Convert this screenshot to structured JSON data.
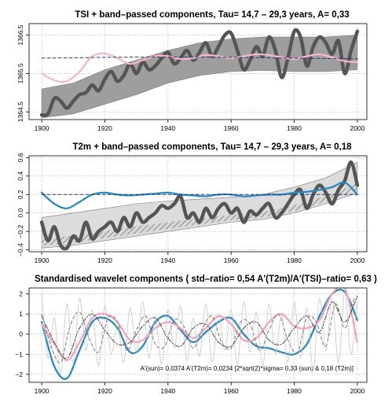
{
  "chart_data": [
    {
      "type": "line",
      "title": "TSI + band–passed components, Tau= 14,7 – 29,3 years, A= 0,33",
      "xlabel": "",
      "ylabel": "",
      "xlim": [
        1896,
        2003
      ],
      "ylim": [
        1364.3,
        1366.8
      ],
      "xticks": [
        1900,
        1920,
        1940,
        1960,
        1980,
        2000
      ],
      "yticks": [
        1364.5,
        1365.5,
        1366.5
      ],
      "ytick_labels": [
        "1364.5",
        "1365.5",
        "1366.5"
      ],
      "grid": true,
      "band": {
        "x": [
          1900,
          1910,
          1920,
          1930,
          1940,
          1950,
          1960,
          1970,
          1980,
          1990,
          2000
        ],
        "lower": [
          1364.35,
          1364.45,
          1364.7,
          1364.95,
          1365.25,
          1365.45,
          1365.55,
          1365.58,
          1365.55,
          1365.55,
          1365.6
        ],
        "upper": [
          1365.1,
          1365.25,
          1365.6,
          1365.85,
          1366.1,
          1366.3,
          1366.4,
          1366.45,
          1366.45,
          1366.45,
          1366.5
        ]
      },
      "series": [
        {
          "color": "#555555",
          "style": "thick",
          "x": [
            1900,
            1902,
            1904,
            1906,
            1908,
            1910,
            1912,
            1914,
            1916,
            1918,
            1920,
            1922,
            1924,
            1926,
            1928,
            1930,
            1932,
            1934,
            1936,
            1938,
            1940,
            1942,
            1944,
            1946,
            1948,
            1950,
            1952,
            1954,
            1956,
            1958,
            1960,
            1962,
            1964,
            1966,
            1968,
            1970,
            1972,
            1974,
            1976,
            1978,
            1980,
            1982,
            1984,
            1986,
            1988,
            1990,
            1992,
            1994,
            1996,
            1998,
            2000
          ],
          "y": [
            1364.42,
            1364.45,
            1364.85,
            1364.78,
            1364.6,
            1364.78,
            1364.95,
            1365.0,
            1365.2,
            1365.05,
            1365.35,
            1365.55,
            1365.3,
            1365.45,
            1365.75,
            1365.5,
            1365.8,
            1365.6,
            1365.7,
            1365.9,
            1366.05,
            1365.75,
            1365.9,
            1366.1,
            1365.85,
            1366.05,
            1366.3,
            1365.95,
            1366.2,
            1366.5,
            1366.55,
            1366.1,
            1365.6,
            1365.85,
            1366.2,
            1365.95,
            1366.45,
            1366.1,
            1365.4,
            1365.9,
            1366.6,
            1366.45,
            1365.7,
            1366.2,
            1366.45,
            1366.3,
            1366.0,
            1366.35,
            1365.5,
            1366.1,
            1366.6
          ]
        },
        {
          "color": "#f4b8c6",
          "style": "smooth",
          "x": [
            1900,
            1904,
            1908,
            1912,
            1916,
            1920,
            1924,
            1928,
            1932,
            1936,
            1940,
            1944,
            1948,
            1952,
            1956,
            1960,
            1964,
            1968,
            1972,
            1976,
            1980,
            1984,
            1988,
            1992,
            1996,
            2000
          ],
          "y": [
            1365.5,
            1365.32,
            1365.3,
            1365.55,
            1365.95,
            1366.02,
            1365.9,
            1365.75,
            1365.85,
            1365.95,
            1365.95,
            1365.88,
            1365.9,
            1365.98,
            1365.95,
            1365.9,
            1365.95,
            1366.0,
            1365.98,
            1365.92,
            1365.88,
            1365.95,
            1366.0,
            1365.92,
            1365.82,
            1365.8
          ]
        },
        {
          "color": "#333366",
          "style": "dashed",
          "x": [
            1900,
            1920,
            1940,
            1960,
            1980,
            2000
          ],
          "y": [
            1365.9,
            1365.92,
            1365.93,
            1365.92,
            1365.9,
            1365.88
          ]
        }
      ]
    },
    {
      "type": "line",
      "title": "T2m + band–passed components, Tau= 14,7 – 29,3 years, A= 0,18",
      "xlabel": "",
      "ylabel": "",
      "xlim": [
        1896,
        2003
      ],
      "ylim": [
        -0.42,
        0.62
      ],
      "xticks": [
        1900,
        1920,
        1940,
        1960,
        1980,
        2000
      ],
      "yticks": [
        -0.4,
        -0.2,
        0.0,
        0.2,
        0.4,
        0.6
      ],
      "ytick_labels": [
        "−0.4",
        "−0.2",
        "0.0",
        "0.2",
        "0.4",
        "0.6"
      ],
      "grid": true,
      "band": {
        "x": [
          1900,
          1910,
          1920,
          1930,
          1940,
          1950,
          1960,
          1970,
          1980,
          1990,
          2000
        ],
        "lower": [
          -0.38,
          -0.35,
          -0.3,
          -0.25,
          -0.2,
          -0.15,
          -0.1,
          -0.07,
          0.0,
          0.1,
          0.22
        ],
        "upper": [
          -0.05,
          0.0,
          0.05,
          0.1,
          0.13,
          0.15,
          0.17,
          0.2,
          0.28,
          0.38,
          0.55
        ]
      },
      "series": [
        {
          "color": "#555555",
          "style": "thick",
          "x": [
            1900,
            1902,
            1904,
            1906,
            1908,
            1910,
            1912,
            1914,
            1916,
            1918,
            1920,
            1922,
            1924,
            1926,
            1928,
            1930,
            1932,
            1934,
            1936,
            1938,
            1940,
            1942,
            1944,
            1946,
            1948,
            1950,
            1952,
            1954,
            1956,
            1958,
            1960,
            1962,
            1964,
            1966,
            1968,
            1970,
            1972,
            1974,
            1976,
            1978,
            1980,
            1982,
            1984,
            1986,
            1988,
            1990,
            1992,
            1994,
            1996,
            1998,
            2000
          ],
          "y": [
            -0.1,
            -0.3,
            -0.15,
            -0.35,
            -0.38,
            -0.25,
            -0.3,
            -0.1,
            -0.28,
            -0.2,
            -0.15,
            -0.1,
            -0.2,
            -0.05,
            -0.15,
            0.0,
            -0.1,
            -0.05,
            0.0,
            0.08,
            0.05,
            0.1,
            0.18,
            -0.05,
            0.0,
            -0.1,
            0.05,
            -0.05,
            0.05,
            0.1,
            0.0,
            0.05,
            -0.1,
            0.02,
            -0.02,
            0.05,
            0.1,
            -0.05,
            0.0,
            0.1,
            0.2,
            0.25,
            0.05,
            0.2,
            0.3,
            0.22,
            0.1,
            0.25,
            0.35,
            0.55,
            0.3
          ]
        },
        {
          "color": "#2a8abf",
          "style": "smooth",
          "x": [
            1900,
            1904,
            1908,
            1912,
            1916,
            1920,
            1924,
            1928,
            1932,
            1936,
            1940,
            1944,
            1948,
            1952,
            1956,
            1960,
            1964,
            1968,
            1972,
            1976,
            1980,
            1984,
            1988,
            1992,
            1996,
            2000
          ],
          "y": [
            0.22,
            0.1,
            0.05,
            0.12,
            0.2,
            0.22,
            0.2,
            0.19,
            0.2,
            0.21,
            0.22,
            0.2,
            0.19,
            0.18,
            0.2,
            0.2,
            0.18,
            0.19,
            0.2,
            0.2,
            0.22,
            0.23,
            0.25,
            0.28,
            0.33,
            0.2
          ]
        },
        {
          "color": "#333366",
          "style": "dashed",
          "x": [
            1900,
            1920,
            1940,
            1960,
            1980,
            2000
          ],
          "y": [
            0.2,
            0.2,
            0.2,
            0.2,
            0.2,
            0.2
          ]
        }
      ]
    },
    {
      "type": "line",
      "title": "Standardised wavelet components ( std–ratio= 0,54 A'(T2m)/A'(TSI)–ratio= 0,63 )",
      "xlabel": "",
      "ylabel": "",
      "xlim": [
        1896,
        2003
      ],
      "ylim": [
        -2.4,
        2.3
      ],
      "xticks": [
        1900,
        1920,
        1940,
        1960,
        1980,
        2000
      ],
      "yticks": [
        -2,
        -1,
        0,
        1,
        2
      ],
      "ytick_labels": [
        "−2",
        "−1",
        "0",
        "1",
        "2"
      ],
      "grid": true,
      "annotation": "A'(sun)= 0,0374 A'(T2m)= 0,0234  [2*sqrt(2)*sigma= 0,33  (sun) & 0,18  (T2m)]",
      "series": [
        {
          "color": "#2a8abf",
          "style": "smooth",
          "x": [
            1900,
            1904,
            1908,
            1912,
            1916,
            1920,
            1924,
            1928,
            1932,
            1936,
            1940,
            1944,
            1948,
            1952,
            1956,
            1960,
            1964,
            1968,
            1972,
            1976,
            1980,
            1984,
            1988,
            1992,
            1996,
            2000
          ],
          "y": [
            0.6,
            -1.6,
            -2.2,
            -0.8,
            0.6,
            0.8,
            0.3,
            -0.9,
            -0.6,
            0.6,
            0.9,
            0.2,
            -0.4,
            0.1,
            0.6,
            0.8,
            0.0,
            -0.6,
            -0.7,
            -0.9,
            -1.0,
            -0.5,
            0.9,
            2.0,
            2.1,
            0.7
          ]
        },
        {
          "color": "#f4a6b8",
          "style": "smooth",
          "x": [
            1900,
            1904,
            1908,
            1912,
            1916,
            1920,
            1924,
            1928,
            1932,
            1936,
            1940,
            1944,
            1948,
            1952,
            1956,
            1960,
            1964,
            1968,
            1972,
            1976,
            1980,
            1984,
            1988,
            1992,
            1996,
            2000
          ],
          "y": [
            0.5,
            -0.5,
            -1.3,
            -0.4,
            0.8,
            1.0,
            0.6,
            -0.3,
            -0.3,
            0.3,
            0.6,
            0.3,
            -0.2,
            0.3,
            0.9,
            0.5,
            -0.3,
            -0.2,
            0.6,
            1.0,
            0.4,
            0.3,
            0.7,
            2.0,
            2.3,
            -0.4
          ]
        },
        {
          "color": "#444444",
          "style": "dashdot",
          "x": [
            1900,
            1904,
            1908,
            1912,
            1916,
            1920,
            1924,
            1928,
            1932,
            1936,
            1940,
            1944,
            1948,
            1952,
            1956,
            1960,
            1964,
            1968,
            1972,
            1976,
            1980,
            1984,
            1988,
            1992,
            1996,
            2000
          ],
          "y": [
            0.9,
            -0.4,
            -1.2,
            0.3,
            1.0,
            0.2,
            -0.5,
            -0.4,
            0.4,
            0.8,
            -0.2,
            -0.6,
            0.3,
            0.5,
            -0.4,
            -0.6,
            0.3,
            0.6,
            -0.3,
            -0.5,
            0.3,
            0.9,
            0.1,
            1.6,
            0.6,
            1.9
          ]
        },
        {
          "color": "#777777",
          "style": "dashed",
          "x": [
            1900,
            1903,
            1906,
            1909,
            1912,
            1915,
            1918,
            1921,
            1924,
            1927,
            1930,
            1933,
            1936,
            1939,
            1942,
            1945,
            1948,
            1951,
            1954,
            1957,
            1960,
            1963,
            1966,
            1969,
            1972,
            1975,
            1978,
            1981,
            1984,
            1987,
            1990,
            1993,
            1996,
            1999
          ],
          "y": [
            1.0,
            -0.6,
            -1.4,
            0.4,
            1.1,
            -0.2,
            -0.9,
            0.8,
            0.6,
            -0.8,
            0.2,
            0.9,
            -0.5,
            -0.6,
            0.7,
            0.4,
            -0.7,
            0.3,
            0.9,
            -0.4,
            -0.7,
            0.6,
            0.5,
            -0.8,
            0.2,
            1.0,
            -0.3,
            -0.9,
            0.8,
            0.6,
            -0.6,
            1.5,
            0.3,
            1.8
          ]
        },
        {
          "color": "#bbbbbb",
          "style": "dotted",
          "x": [
            1900,
            1902,
            1904,
            1906,
            1908,
            1910,
            1912,
            1914,
            1916,
            1918,
            1920,
            1922,
            1924,
            1926,
            1928,
            1930,
            1932,
            1934,
            1936,
            1938,
            1940,
            1942,
            1944,
            1946,
            1948,
            1950,
            1952,
            1954,
            1956,
            1958,
            1960,
            1962,
            1964,
            1966,
            1968,
            1970,
            1972,
            1974,
            1976,
            1978,
            1980,
            1982,
            1984,
            1986,
            1988,
            1990,
            1992,
            1994,
            1996,
            1998,
            2000
          ],
          "y": [
            2.0,
            -1.2,
            0.8,
            -2.0,
            1.5,
            -1.5,
            1.8,
            -0.8,
            1.2,
            -1.6,
            1.4,
            -1.0,
            0.6,
            -1.4,
            1.3,
            -0.9,
            1.6,
            -1.2,
            0.9,
            -1.5,
            1.2,
            -0.7,
            1.4,
            -1.3,
            0.8,
            -1.1,
            1.5,
            -1.4,
            1.0,
            -0.8,
            1.2,
            -1.5,
            1.6,
            -0.9,
            1.1,
            -1.6,
            1.5,
            -1.0,
            0.9,
            -1.4,
            1.6,
            -1.2,
            1.3,
            -1.8,
            1.8,
            -0.8,
            1.7,
            -1.4,
            2.1,
            -1.0,
            1.8
          ]
        }
      ]
    }
  ]
}
